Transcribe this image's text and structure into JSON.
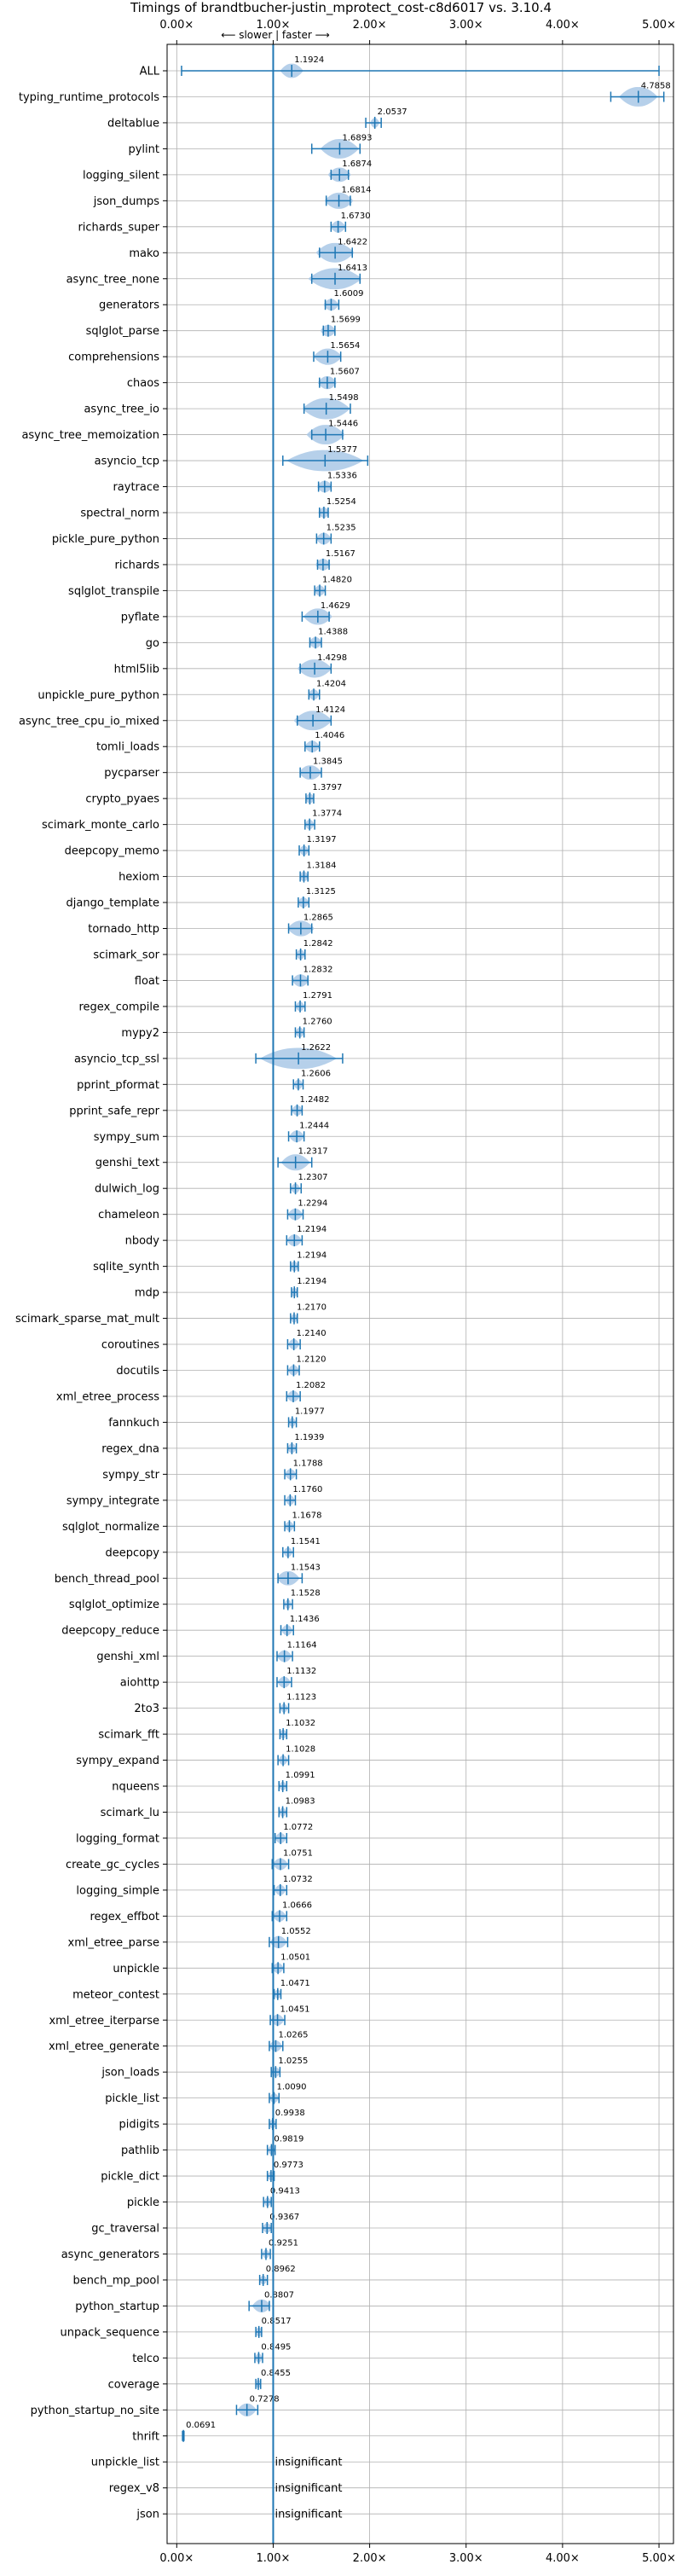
{
  "chart_data": {
    "type": "violin",
    "title": "Timings of brandtbucher-justin_mprotect_cost-c8d6017 vs. 3.10.4",
    "direction_label": "⟵ slower | faster ⟶",
    "xlim": [
      -0.1,
      5.15
    ],
    "x_ticks": [
      0,
      1,
      2,
      3,
      4,
      5
    ],
    "x_tick_labels": [
      "0.00×",
      "1.00×",
      "2.00×",
      "3.00×",
      "4.00×",
      "5.00×"
    ],
    "reference_line": 1.0,
    "grid": true,
    "colors": {
      "violin": "#a9c8e6",
      "whisker": "#1f77b4",
      "mean": "#ff7f0e",
      "axis": "#000000",
      "grid": "#b0b0b0"
    },
    "insignificant_text": "insignificant",
    "benchmarks": [
      {
        "name": "ALL",
        "value": 1.1924,
        "label": "1.1924",
        "low": 0.05,
        "high": 5.0,
        "spread": 0.12
      },
      {
        "name": "typing_runtime_protocols",
        "value": 4.7858,
        "label": "4.7858",
        "low": 4.5,
        "high": 5.05,
        "spread": 0.2
      },
      {
        "name": "deltablue",
        "value": 2.0537,
        "label": "2.0537",
        "low": 1.96,
        "high": 2.12,
        "spread": 0.05
      },
      {
        "name": "pylint",
        "value": 1.6893,
        "label": "1.6893",
        "low": 1.4,
        "high": 1.9,
        "spread": 0.2
      },
      {
        "name": "logging_silent",
        "value": 1.6874,
        "label": "1.6874",
        "low": 1.6,
        "high": 1.78,
        "spread": 0.12
      },
      {
        "name": "json_dumps",
        "value": 1.6814,
        "label": "1.6814",
        "low": 1.55,
        "high": 1.8,
        "spread": 0.15
      },
      {
        "name": "richards_super",
        "value": 1.673,
        "label": "1.6730",
        "low": 1.6,
        "high": 1.75,
        "spread": 0.08
      },
      {
        "name": "mako",
        "value": 1.6422,
        "label": "1.6422",
        "low": 1.48,
        "high": 1.82,
        "spread": 0.2
      },
      {
        "name": "async_tree_none",
        "value": 1.6413,
        "label": "1.6413",
        "low": 1.4,
        "high": 1.9,
        "spread": 0.28
      },
      {
        "name": "generators",
        "value": 1.6009,
        "label": "1.6009",
        "low": 1.54,
        "high": 1.68,
        "spread": 0.08
      },
      {
        "name": "sqlglot_parse",
        "value": 1.5699,
        "label": "1.5699",
        "low": 1.52,
        "high": 1.64,
        "spread": 0.08
      },
      {
        "name": "comprehensions",
        "value": 1.5654,
        "label": "1.5654",
        "low": 1.42,
        "high": 1.7,
        "spread": 0.15
      },
      {
        "name": "chaos",
        "value": 1.5607,
        "label": "1.5607",
        "low": 1.48,
        "high": 1.64,
        "spread": 0.1
      },
      {
        "name": "async_tree_io",
        "value": 1.5498,
        "label": "1.5498",
        "low": 1.32,
        "high": 1.8,
        "spread": 0.25
      },
      {
        "name": "async_tree_memoization",
        "value": 1.5446,
        "label": "1.5446",
        "low": 1.4,
        "high": 1.72,
        "spread": 0.2
      },
      {
        "name": "asyncio_tcp",
        "value": 1.5377,
        "label": "1.5377",
        "low": 1.1,
        "high": 1.98,
        "spread": 0.4
      },
      {
        "name": "raytrace",
        "value": 1.5336,
        "label": "1.5336",
        "low": 1.47,
        "high": 1.6,
        "spread": 0.08
      },
      {
        "name": "spectral_norm",
        "value": 1.5254,
        "label": "1.5254",
        "low": 1.48,
        "high": 1.57,
        "spread": 0.06
      },
      {
        "name": "pickle_pure_python",
        "value": 1.5235,
        "label": "1.5235",
        "low": 1.45,
        "high": 1.6,
        "spread": 0.08
      },
      {
        "name": "richards",
        "value": 1.5167,
        "label": "1.5167",
        "low": 1.46,
        "high": 1.58,
        "spread": 0.08
      },
      {
        "name": "sqlglot_transpile",
        "value": 1.482,
        "label": "1.4820",
        "low": 1.43,
        "high": 1.54,
        "spread": 0.06
      },
      {
        "name": "pyflate",
        "value": 1.4629,
        "label": "1.4629",
        "low": 1.3,
        "high": 1.58,
        "spread": 0.15
      },
      {
        "name": "go",
        "value": 1.4388,
        "label": "1.4388",
        "low": 1.38,
        "high": 1.5,
        "spread": 0.07
      },
      {
        "name": "html5lib",
        "value": 1.4298,
        "label": "1.4298",
        "low": 1.28,
        "high": 1.6,
        "spread": 0.18
      },
      {
        "name": "unpickle_pure_python",
        "value": 1.4204,
        "label": "1.4204",
        "low": 1.37,
        "high": 1.48,
        "spread": 0.06
      },
      {
        "name": "async_tree_cpu_io_mixed",
        "value": 1.4124,
        "label": "1.4124",
        "low": 1.25,
        "high": 1.6,
        "spread": 0.2
      },
      {
        "name": "tomli_loads",
        "value": 1.4046,
        "label": "1.4046",
        "low": 1.33,
        "high": 1.48,
        "spread": 0.08
      },
      {
        "name": "pycparser",
        "value": 1.3845,
        "label": "1.3845",
        "low": 1.28,
        "high": 1.5,
        "spread": 0.12
      },
      {
        "name": "crypto_pyaes",
        "value": 1.3797,
        "label": "1.3797",
        "low": 1.34,
        "high": 1.42,
        "spread": 0.05
      },
      {
        "name": "scimark_monte_carlo",
        "value": 1.3774,
        "label": "1.3774",
        "low": 1.33,
        "high": 1.43,
        "spread": 0.05
      },
      {
        "name": "deepcopy_memo",
        "value": 1.3197,
        "label": "1.3197",
        "low": 1.27,
        "high": 1.37,
        "spread": 0.05
      },
      {
        "name": "hexiom",
        "value": 1.3184,
        "label": "1.3184",
        "low": 1.28,
        "high": 1.36,
        "spread": 0.05
      },
      {
        "name": "django_template",
        "value": 1.3125,
        "label": "1.3125",
        "low": 1.26,
        "high": 1.37,
        "spread": 0.06
      },
      {
        "name": "tornado_http",
        "value": 1.2865,
        "label": "1.2865",
        "low": 1.16,
        "high": 1.4,
        "spread": 0.14
      },
      {
        "name": "scimark_sor",
        "value": 1.2842,
        "label": "1.2842",
        "low": 1.24,
        "high": 1.33,
        "spread": 0.05
      },
      {
        "name": "float",
        "value": 1.2832,
        "label": "1.2832",
        "low": 1.2,
        "high": 1.36,
        "spread": 0.09
      },
      {
        "name": "regex_compile",
        "value": 1.2791,
        "label": "1.2791",
        "low": 1.23,
        "high": 1.33,
        "spread": 0.05
      },
      {
        "name": "mypy2",
        "value": 1.276,
        "label": "1.2760",
        "low": 1.23,
        "high": 1.32,
        "spread": 0.05
      },
      {
        "name": "asyncio_tcp_ssl",
        "value": 1.2622,
        "label": "1.2622",
        "low": 0.82,
        "high": 1.72,
        "spread": 0.4
      },
      {
        "name": "pprint_pformat",
        "value": 1.2606,
        "label": "1.2606",
        "low": 1.21,
        "high": 1.31,
        "spread": 0.05
      },
      {
        "name": "pprint_safe_repr",
        "value": 1.2482,
        "label": "1.2482",
        "low": 1.19,
        "high": 1.3,
        "spread": 0.06
      },
      {
        "name": "sympy_sum",
        "value": 1.2444,
        "label": "1.2444",
        "low": 1.16,
        "high": 1.32,
        "spread": 0.08
      },
      {
        "name": "genshi_text",
        "value": 1.2317,
        "label": "1.2317",
        "low": 1.05,
        "high": 1.4,
        "spread": 0.15
      },
      {
        "name": "dulwich_log",
        "value": 1.2307,
        "label": "1.2307",
        "low": 1.18,
        "high": 1.29,
        "spread": 0.05
      },
      {
        "name": "chameleon",
        "value": 1.2294,
        "label": "1.2294",
        "low": 1.15,
        "high": 1.31,
        "spread": 0.08
      },
      {
        "name": "nbody",
        "value": 1.2194,
        "label": "1.2194",
        "low": 1.14,
        "high": 1.3,
        "spread": 0.08
      },
      {
        "name": "sqlite_synth",
        "value": 1.2194,
        "label": "1.2194",
        "low": 1.18,
        "high": 1.26,
        "spread": 0.05
      },
      {
        "name": "mdp",
        "value": 1.2194,
        "label": "1.2194",
        "low": 1.19,
        "high": 1.25,
        "spread": 0.04
      },
      {
        "name": "scimark_sparse_mat_mult",
        "value": 1.217,
        "label": "1.2170",
        "low": 1.18,
        "high": 1.25,
        "spread": 0.04
      },
      {
        "name": "coroutines",
        "value": 1.214,
        "label": "1.2140",
        "low": 1.15,
        "high": 1.28,
        "spread": 0.06
      },
      {
        "name": "docutils",
        "value": 1.212,
        "label": "1.2120",
        "low": 1.15,
        "high": 1.27,
        "spread": 0.06
      },
      {
        "name": "xml_etree_process",
        "value": 1.2082,
        "label": "1.2082",
        "low": 1.14,
        "high": 1.28,
        "spread": 0.07
      },
      {
        "name": "fannkuch",
        "value": 1.1977,
        "label": "1.1977",
        "low": 1.16,
        "high": 1.24,
        "spread": 0.04
      },
      {
        "name": "regex_dna",
        "value": 1.1939,
        "label": "1.1939",
        "low": 1.15,
        "high": 1.24,
        "spread": 0.05
      },
      {
        "name": "sympy_str",
        "value": 1.1788,
        "label": "1.1788",
        "low": 1.12,
        "high": 1.24,
        "spread": 0.06
      },
      {
        "name": "sympy_integrate",
        "value": 1.176,
        "label": "1.1760",
        "low": 1.12,
        "high": 1.23,
        "spread": 0.05
      },
      {
        "name": "sqlglot_normalize",
        "value": 1.1678,
        "label": "1.1678",
        "low": 1.12,
        "high": 1.22,
        "spread": 0.05
      },
      {
        "name": "deepcopy",
        "value": 1.1541,
        "label": "1.1541",
        "low": 1.1,
        "high": 1.21,
        "spread": 0.05
      },
      {
        "name": "bench_thread_pool",
        "value": 1.1543,
        "label": "1.1543",
        "low": 1.05,
        "high": 1.3,
        "spread": 0.12
      },
      {
        "name": "sqlglot_optimize",
        "value": 1.1528,
        "label": "1.1528",
        "low": 1.11,
        "high": 1.2,
        "spread": 0.04
      },
      {
        "name": "deepcopy_reduce",
        "value": 1.1436,
        "label": "1.1436",
        "low": 1.08,
        "high": 1.21,
        "spread": 0.06
      },
      {
        "name": "genshi_xml",
        "value": 1.1164,
        "label": "1.1164",
        "low": 1.04,
        "high": 1.2,
        "spread": 0.08
      },
      {
        "name": "aiohttp",
        "value": 1.1132,
        "label": "1.1132",
        "low": 1.04,
        "high": 1.19,
        "spread": 0.07
      },
      {
        "name": "2to3",
        "value": 1.1123,
        "label": "1.1123",
        "low": 1.07,
        "high": 1.16,
        "spread": 0.04
      },
      {
        "name": "scimark_fft",
        "value": 1.1032,
        "label": "1.1032",
        "low": 1.07,
        "high": 1.14,
        "spread": 0.04
      },
      {
        "name": "sympy_expand",
        "value": 1.1028,
        "label": "1.1028",
        "low": 1.05,
        "high": 1.16,
        "spread": 0.05
      },
      {
        "name": "nqueens",
        "value": 1.0991,
        "label": "1.0991",
        "low": 1.06,
        "high": 1.14,
        "spread": 0.04
      },
      {
        "name": "scimark_lu",
        "value": 1.0983,
        "label": "1.0983",
        "low": 1.06,
        "high": 1.14,
        "spread": 0.04
      },
      {
        "name": "logging_format",
        "value": 1.0772,
        "label": "1.0772",
        "low": 1.02,
        "high": 1.14,
        "spread": 0.06
      },
      {
        "name": "create_gc_cycles",
        "value": 1.0751,
        "label": "1.0751",
        "low": 0.99,
        "high": 1.16,
        "spread": 0.08
      },
      {
        "name": "logging_simple",
        "value": 1.0732,
        "label": "1.0732",
        "low": 1.01,
        "high": 1.14,
        "spread": 0.06
      },
      {
        "name": "regex_effbot",
        "value": 1.0666,
        "label": "1.0666",
        "low": 0.99,
        "high": 1.14,
        "spread": 0.07
      },
      {
        "name": "xml_etree_parse",
        "value": 1.0552,
        "label": "1.0552",
        "low": 0.96,
        "high": 1.15,
        "spread": 0.09
      },
      {
        "name": "unpickle",
        "value": 1.0501,
        "label": "1.0501",
        "low": 0.99,
        "high": 1.11,
        "spread": 0.06
      },
      {
        "name": "meteor_contest",
        "value": 1.0471,
        "label": "1.0471",
        "low": 1.01,
        "high": 1.08,
        "spread": 0.04
      },
      {
        "name": "xml_etree_iterparse",
        "value": 1.0451,
        "label": "1.0451",
        "low": 0.97,
        "high": 1.12,
        "spread": 0.07
      },
      {
        "name": "xml_etree_generate",
        "value": 1.0265,
        "label": "1.0265",
        "low": 0.96,
        "high": 1.1,
        "spread": 0.07
      },
      {
        "name": "json_loads",
        "value": 1.0255,
        "label": "1.0255",
        "low": 0.98,
        "high": 1.07,
        "spread": 0.05
      },
      {
        "name": "pickle_list",
        "value": 1.009,
        "label": "1.0090",
        "low": 0.96,
        "high": 1.06,
        "spread": 0.05
      },
      {
        "name": "pidigits",
        "value": 0.9938,
        "label": "0.9938",
        "low": 0.96,
        "high": 1.03,
        "spread": 0.04
      },
      {
        "name": "pathlib",
        "value": 0.9819,
        "label": "0.9819",
        "low": 0.94,
        "high": 1.02,
        "spread": 0.04
      },
      {
        "name": "pickle_dict",
        "value": 0.9773,
        "label": "0.9773",
        "low": 0.94,
        "high": 1.01,
        "spread": 0.04
      },
      {
        "name": "pickle",
        "value": 0.9413,
        "label": "0.9413",
        "low": 0.9,
        "high": 0.98,
        "spread": 0.04
      },
      {
        "name": "gc_traversal",
        "value": 0.9367,
        "label": "0.9367",
        "low": 0.89,
        "high": 0.98,
        "spread": 0.05
      },
      {
        "name": "async_generators",
        "value": 0.9251,
        "label": "0.9251",
        "low": 0.88,
        "high": 0.97,
        "spread": 0.04
      },
      {
        "name": "bench_mp_pool",
        "value": 0.8962,
        "label": "0.8962",
        "low": 0.86,
        "high": 0.94,
        "spread": 0.04
      },
      {
        "name": "python_startup",
        "value": 0.8807,
        "label": "0.8807",
        "low": 0.75,
        "high": 0.96,
        "spread": 0.1
      },
      {
        "name": "unpack_sequence",
        "value": 0.8517,
        "label": "0.8517",
        "low": 0.82,
        "high": 0.88,
        "spread": 0.04
      },
      {
        "name": "telco",
        "value": 0.8495,
        "label": "0.8495",
        "low": 0.81,
        "high": 0.89,
        "spread": 0.04
      },
      {
        "name": "coverage",
        "value": 0.8455,
        "label": "0.8455",
        "low": 0.82,
        "high": 0.87,
        "spread": 0.03
      },
      {
        "name": "python_startup_no_site",
        "value": 0.7278,
        "label": "0.7278",
        "low": 0.62,
        "high": 0.84,
        "spread": 0.1
      },
      {
        "name": "thrift",
        "value": 0.0691,
        "label": "0.0691",
        "low": 0.06,
        "high": 0.075,
        "spread": 0.01
      },
      {
        "name": "unpickle_list",
        "insignificant": true
      },
      {
        "name": "regex_v8",
        "insignificant": true
      },
      {
        "name": "json",
        "insignificant": true
      }
    ]
  }
}
